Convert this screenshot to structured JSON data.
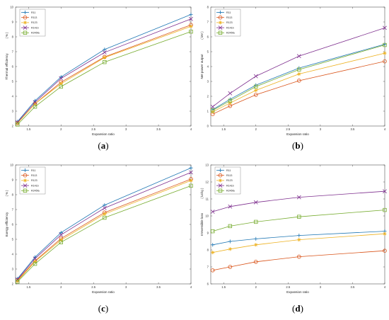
{
  "colors": {
    "R11": "#1f77b4",
    "R113": "#d95319",
    "R123": "#edb120",
    "R141b": "#7e2f8e",
    "R245fa": "#77ac30"
  },
  "chart_data": [
    {
      "type": "line",
      "panel": "(a)",
      "panel_letter": "a",
      "xlabel": "Expansion ratio",
      "ylabel": "Thermal efficiency",
      "yunit": "( % )",
      "xlim": [
        1.3,
        4.0
      ],
      "ylim": [
        2,
        10
      ],
      "xticks": [
        1.5,
        2,
        2.5,
        3,
        3.5,
        4
      ],
      "yticks": [
        2,
        3,
        4,
        5,
        6,
        7,
        8,
        9,
        10
      ],
      "legend": "top-left",
      "x": [
        1.33,
        1.6,
        2.0,
        2.67,
        4.0
      ],
      "series": [
        {
          "name": "R11",
          "marker": "plus",
          "values": [
            2.3,
            3.7,
            5.3,
            7.15,
            9.5
          ]
        },
        {
          "name": "R113",
          "marker": "circle",
          "values": [
            2.2,
            3.5,
            4.95,
            6.65,
            8.8
          ]
        },
        {
          "name": "R123",
          "marker": "star",
          "values": [
            2.2,
            3.5,
            4.85,
            6.6,
            8.7
          ]
        },
        {
          "name": "R141b",
          "marker": "x",
          "values": [
            2.25,
            3.6,
            5.2,
            6.95,
            9.2
          ]
        },
        {
          "name": "R245fa",
          "marker": "square",
          "values": [
            2.1,
            3.3,
            4.65,
            6.3,
            8.35
          ]
        }
      ]
    },
    {
      "type": "line",
      "panel": "(b)",
      "panel_letter": "b",
      "xlabel": "Expansion ratio",
      "ylabel": "Net power output",
      "yunit": "( kW )",
      "xlim": [
        1.3,
        4.0
      ],
      "ylim": [
        0,
        8
      ],
      "xticks": [
        1.5,
        2,
        2.5,
        3,
        3.5,
        4
      ],
      "yticks": [
        0,
        1,
        2,
        3,
        4,
        5,
        6,
        7,
        8
      ],
      "legend": "top-left",
      "x": [
        1.33,
        1.6,
        2.0,
        2.67,
        4.0
      ],
      "series": [
        {
          "name": "R11",
          "marker": "plus",
          "values": [
            1.1,
            1.8,
            2.75,
            3.9,
            5.5
          ]
        },
        {
          "name": "R113",
          "marker": "circle",
          "values": [
            0.8,
            1.35,
            2.1,
            3.05,
            4.35
          ]
        },
        {
          "name": "R123",
          "marker": "star",
          "values": [
            0.95,
            1.55,
            2.4,
            3.5,
            4.9
          ]
        },
        {
          "name": "R141b",
          "marker": "x",
          "values": [
            1.3,
            2.2,
            3.35,
            4.7,
            6.6
          ]
        },
        {
          "name": "R245fa",
          "marker": "square",
          "values": [
            1.05,
            1.7,
            2.65,
            3.8,
            5.45
          ]
        }
      ]
    },
    {
      "type": "line",
      "panel": "(c)",
      "panel_letter": "c",
      "xlabel": "Expansion ratio",
      "ylabel": "Exergy efficiency",
      "yunit": "( % )",
      "xlim": [
        1.3,
        4.0
      ],
      "ylim": [
        2,
        10
      ],
      "xticks": [
        1.5,
        2,
        2.5,
        3,
        3.5,
        4
      ],
      "yticks": [
        2,
        3,
        4,
        5,
        6,
        7,
        8,
        9,
        10
      ],
      "legend": "top-left",
      "x": [
        1.33,
        1.6,
        2.0,
        2.67,
        4.0
      ],
      "series": [
        {
          "name": "R11",
          "marker": "plus",
          "values": [
            2.35,
            3.8,
            5.45,
            7.3,
            9.8
          ]
        },
        {
          "name": "R113",
          "marker": "circle",
          "values": [
            2.25,
            3.55,
            5.05,
            6.8,
            9.05
          ]
        },
        {
          "name": "R123",
          "marker": "star",
          "values": [
            2.2,
            3.5,
            4.95,
            6.7,
            8.95
          ]
        },
        {
          "name": "R141b",
          "marker": "x",
          "values": [
            2.3,
            3.7,
            5.3,
            7.1,
            9.5
          ]
        },
        {
          "name": "R245fa",
          "marker": "square",
          "values": [
            2.15,
            3.35,
            4.8,
            6.45,
            8.6
          ]
        }
      ]
    },
    {
      "type": "line",
      "panel": "(d)",
      "panel_letter": "d",
      "xlabel": "Expansion ratio",
      "ylabel": "Irreversible loss",
      "yunit": "( kJ/kg )",
      "xlim": [
        1.3,
        4.0
      ],
      "ylim": [
        6,
        13
      ],
      "xticks": [
        1.5,
        2,
        2.5,
        3,
        3.5,
        4
      ],
      "yticks": [
        6,
        7,
        8,
        9,
        10,
        11,
        12,
        13
      ],
      "legend": "top-left",
      "x": [
        1.33,
        1.6,
        2.0,
        2.67,
        4.0
      ],
      "series": [
        {
          "name": "R11",
          "marker": "plus",
          "values": [
            8.3,
            8.5,
            8.65,
            8.85,
            9.1
          ]
        },
        {
          "name": "R113",
          "marker": "circle",
          "values": [
            6.8,
            7.0,
            7.3,
            7.6,
            7.95
          ]
        },
        {
          "name": "R123",
          "marker": "star",
          "values": [
            7.85,
            8.05,
            8.3,
            8.6,
            8.95
          ]
        },
        {
          "name": "R141b",
          "marker": "x",
          "values": [
            10.25,
            10.55,
            10.8,
            11.1,
            11.45
          ]
        },
        {
          "name": "R245fa",
          "marker": "square",
          "values": [
            9.1,
            9.4,
            9.65,
            9.95,
            10.35
          ]
        }
      ]
    }
  ]
}
